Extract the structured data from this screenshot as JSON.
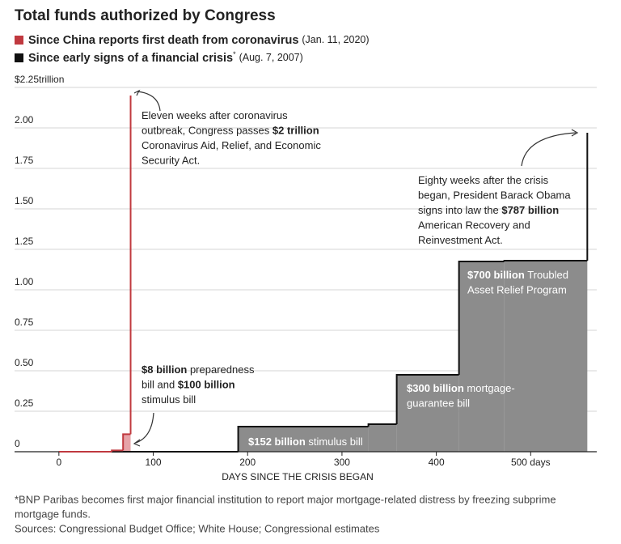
{
  "chart_data": {
    "type": "step",
    "title": "Total funds authorized by Congress",
    "series": [
      {
        "name": "Since China reports first death from coronavirus",
        "date": "(Jan. 11, 2020)",
        "color": "#c0393f",
        "fill": "#e6a3a8",
        "x": [
          0,
          56,
          68,
          76
        ],
        "values": [
          0,
          0.008,
          0.108,
          2.2
        ]
      },
      {
        "name": "Since early signs of a financial crisis",
        "marker": "*",
        "date": "(Aug. 7, 2007)",
        "color": "#111111",
        "fill": "#8c8c8c",
        "x": [
          0,
          190,
          328,
          358,
          424,
          472,
          560
        ],
        "values": [
          0,
          0.155,
          0.17,
          0.475,
          1.175,
          1.18,
          1.97
        ]
      }
    ],
    "xlim": [
      -47,
      570
    ],
    "ylim": [
      0,
      2.25
    ],
    "xticks": [
      0,
      100,
      200,
      300,
      400,
      {
        "value": 500,
        "label": "500 days"
      }
    ],
    "yticks": [
      0,
      0.25,
      {
        "value": 0.5,
        "label": "0.50"
      },
      0.75,
      {
        "value": 1,
        "label": "1.00"
      },
      1.25,
      {
        "value": 1.5,
        "label": "1.50"
      },
      1.75,
      {
        "value": 2,
        "label": "2.00"
      },
      {
        "value": 2.25,
        "label": "$2.25trillion"
      }
    ],
    "xlabel": "DAYS SINCE THE CRISIS BEGAN",
    "grid": true,
    "annotations": [
      {
        "lines": [
          [
            "Eleven weeks after coronavirus"
          ],
          [
            "outbreak, Congress passes ",
            {
              "bold": "$2 trillion"
            }
          ],
          [
            "Coronavirus Aid, Relief, and Economic"
          ],
          [
            "Security Act."
          ]
        ]
      },
      {
        "lines": [
          [
            "Eighty weeks after the crisis"
          ],
          [
            "began, President Barack Obama"
          ],
          [
            "signs into law the ",
            {
              "bold": "$787 billion"
            }
          ],
          [
            "American Recovery and"
          ],
          [
            "Reinvestment Act."
          ]
        ]
      },
      {
        "lines": [
          [
            {
              "bold": "$8 billion"
            },
            " preparedness"
          ],
          [
            "bill and ",
            {
              "bold": "$100 billion"
            }
          ],
          [
            "stimulus bill"
          ]
        ]
      },
      {
        "lines": [
          [
            {
              "bold": "$700 billion"
            },
            " Troubled"
          ],
          [
            "Asset Relief Program"
          ]
        ]
      },
      {
        "lines": [
          [
            {
              "bold": "$300 billion"
            },
            " mortgage-"
          ],
          [
            "guarantee bill"
          ]
        ]
      },
      {
        "lines": [
          [
            {
              "bold": "$152 billion"
            },
            " stimulus bill"
          ]
        ]
      }
    ],
    "footnote": [
      "*BNP Paribas becomes first major financial institution to report major mortgage-related distress by freezing subprime",
      "mortgage funds."
    ],
    "source": "Sources: Congressional Budget Office; White House; Congressional estimates"
  }
}
